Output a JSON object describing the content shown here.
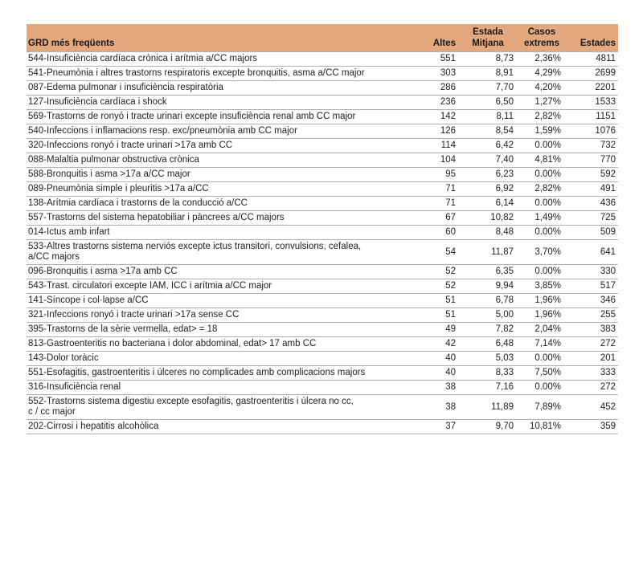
{
  "colors": {
    "header_bg": "#e3a87d",
    "row_border": "#aab2c0",
    "text": "#222222"
  },
  "chart_data": {
    "type": "table",
    "title": "GRD més freqüents",
    "columns": [
      "GRD més freqüents",
      "Altes",
      "Estada Mitjana",
      "Casos extrems",
      "Estades"
    ],
    "rows": [
      [
        "544-Insuficiència cardíaca crònica i arítmia a/CC majors",
        "551",
        "8,73",
        "2,36%",
        "4811"
      ],
      [
        "541-Pneumònia i altres trastorns respiratoris excepte bronquitis, asma a/CC major",
        "303",
        "8,91",
        "4,29%",
        "2699"
      ],
      [
        "087-Edema pulmonar i insuficiència respiratòria",
        "286",
        "7,70",
        "4,20%",
        "2201"
      ],
      [
        "127-Insuficiència cardíaca i shock",
        "236",
        "6,50",
        "1,27%",
        "1533"
      ],
      [
        "569-Trastorns de ronyó i tracte urinari excepte insuficiència renal amb CC major",
        "142",
        "8,11",
        "2,82%",
        "1151"
      ],
      [
        "540-Infeccions i inflamacions resp. exc/pneumònia amb CC major",
        "126",
        "8,54",
        "1,59%",
        "1076"
      ],
      [
        "320-Infeccions ronyó i tracte urinari >17a amb CC",
        "114",
        "6,42",
        "0.00%",
        "732"
      ],
      [
        "088-Malaltia pulmonar obstructiva crònica",
        "104",
        "7,40",
        "4,81%",
        "770"
      ],
      [
        "588-Bronquitis i asma >17a a/CC major",
        "95",
        "6,23",
        "0.00%",
        "592"
      ],
      [
        "089-Pneumònia simple i pleuritis  >17a a/CC",
        "71",
        "6,92",
        "2,82%",
        "491"
      ],
      [
        "138-Arítmia cardíaca i trastorns de la conducció a/CC",
        "71",
        "6,14",
        "0.00%",
        "436"
      ],
      [
        "557-Trastorns del sistema hepatobiliar i pàncrees a/CC majors",
        "67",
        "10,82",
        "1,49%",
        "725"
      ],
      [
        "014-Ictus amb infart",
        "60",
        "8,48",
        "0.00%",
        "509"
      ],
      [
        "533-Altres trastorns sistema nerviós excepte ictus transitori, convulsions, cefalea,\na/CC majors",
        "54",
        "11,87",
        "3,70%",
        "641"
      ],
      [
        "096-Bronquitis i asma >17a amb CC",
        "52",
        "6,35",
        "0.00%",
        "330"
      ],
      [
        "543-Trast. circulatori excepte IAM, ICC i arítmia a/CC major",
        "52",
        "9,94",
        "3,85%",
        "517"
      ],
      [
        "141-Síncope i col·lapse a/CC",
        "51",
        "6,78",
        "1,96%",
        "346"
      ],
      [
        "321-Infeccions ronyó i tracte urinari >17a sense CC",
        "51",
        "5,00",
        "1,96%",
        "255"
      ],
      [
        "395-Trastorns de la sèrie vermella, edat> = 18",
        "49",
        "7,82",
        "2,04%",
        "383"
      ],
      [
        "813-Gastroenteritis no bacteriana i dolor abdominal, edat> 17 amb CC",
        "42",
        "6,48",
        "7,14%",
        "272"
      ],
      [
        "143-Dolor toràcic",
        "40",
        "5,03",
        "0.00%",
        "201"
      ],
      [
        "551-Esofagitis, gastroenteritis i úlceres no complicades amb complicacions majors",
        "40",
        "8,33",
        "7,50%",
        "333"
      ],
      [
        "316-Insuficiència renal",
        "38",
        "7,16",
        "0.00%",
        "272"
      ],
      [
        "552-Trastorns sistema digestiu excepte esofagitis, gastroenteritis i úlcera no cc,\nc / cc major",
        "38",
        "11,89",
        "7,89%",
        "452"
      ],
      [
        "202-Cirrosi i hepatitis alcohòlica",
        "37",
        "9,70",
        "10,81%",
        "359"
      ]
    ]
  }
}
